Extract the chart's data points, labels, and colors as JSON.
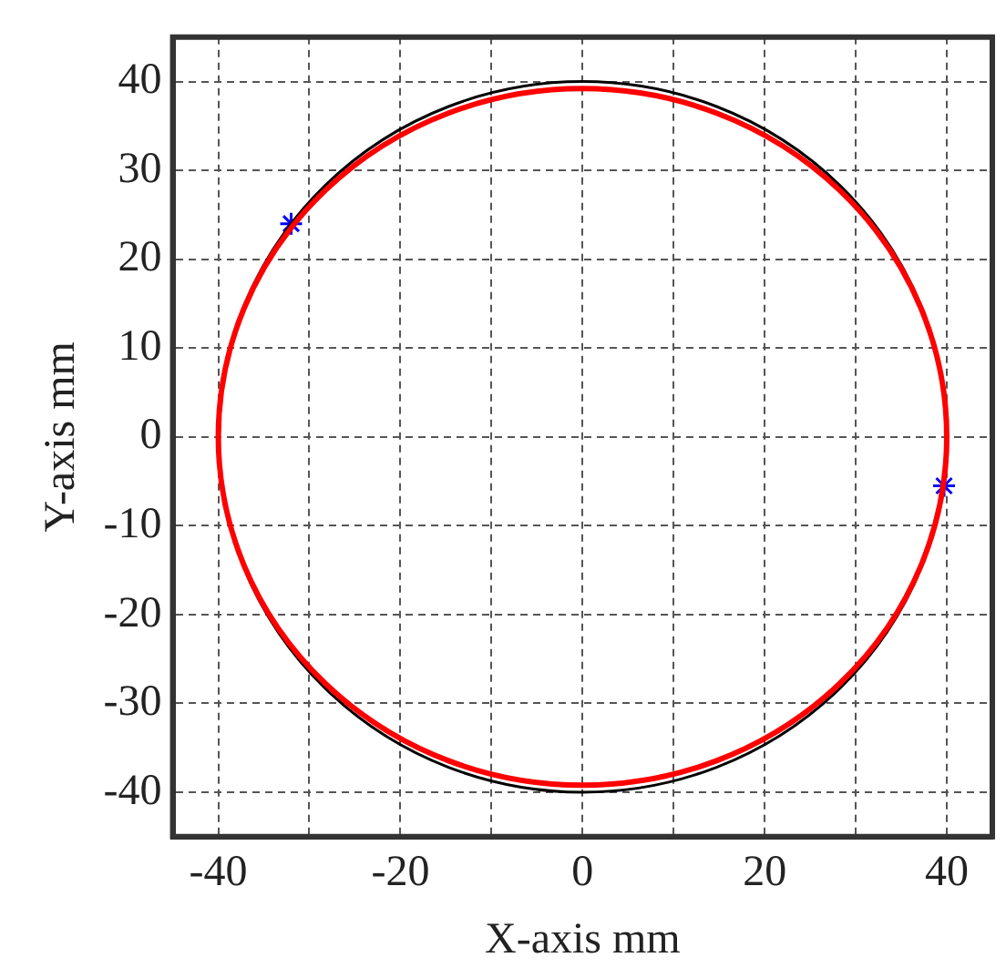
{
  "chart_data": {
    "type": "scatter",
    "xlabel": "X-axis mm",
    "ylabel": "Y-axis mm",
    "xlim": [
      -45,
      45
    ],
    "ylim": [
      -45,
      45
    ],
    "xticks": [
      -40,
      {
        "value": -30,
        "label": null
      },
      -20,
      {
        "value": -10,
        "label": null
      },
      0,
      {
        "value": 10,
        "label": null
      },
      20,
      {
        "value": 30,
        "label": null
      },
      40
    ],
    "yticks": [
      -40,
      -30,
      -20,
      -10,
      0,
      10,
      20,
      30,
      40
    ],
    "grid": true,
    "marker": "cross",
    "series": [
      {
        "color": "#0000ff",
        "x": [
          -32,
          39.7
        ],
        "values": [
          24,
          -5.5
        ]
      }
    ]
  }
}
